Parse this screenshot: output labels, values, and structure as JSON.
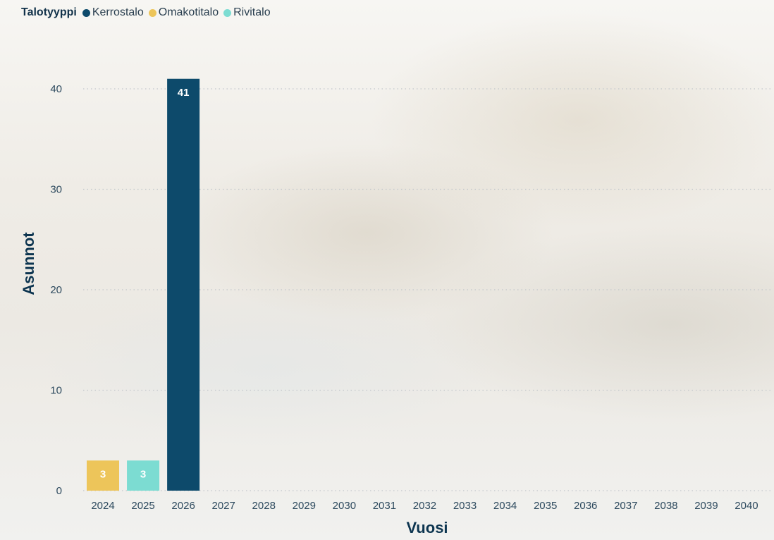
{
  "legend": {
    "title": "Talotyyppi",
    "items": [
      {
        "label": "Kerrostalo",
        "color": "#0d4a6b"
      },
      {
        "label": "Omakotitalo",
        "color": "#edc55a"
      },
      {
        "label": "Rivitalo",
        "color": "#7cdcd2"
      }
    ]
  },
  "chart_data": {
    "type": "bar",
    "xlabel": "Vuosi",
    "ylabel": "Asunnot",
    "ylim": [
      0,
      42
    ],
    "yticks": [
      0,
      10,
      20,
      30,
      40
    ],
    "grid": true,
    "categories": [
      "2024",
      "2025",
      "2026",
      "2027",
      "2028",
      "2029",
      "2030",
      "2031",
      "2032",
      "2033",
      "2034",
      "2035",
      "2036",
      "2037",
      "2038",
      "2039",
      "2040"
    ],
    "series": [
      {
        "name": "Kerrostalo",
        "color": "#0d4a6b",
        "values": [
          0,
          0,
          41,
          0,
          0,
          0,
          0,
          0,
          0,
          0,
          0,
          0,
          0,
          0,
          0,
          0,
          0
        ]
      },
      {
        "name": "Omakotitalo",
        "color": "#edc55a",
        "values": [
          3,
          0,
          0,
          0,
          0,
          0,
          0,
          0,
          0,
          0,
          0,
          0,
          0,
          0,
          0,
          0,
          0
        ]
      },
      {
        "name": "Rivitalo",
        "color": "#7cdcd2",
        "values": [
          0,
          3,
          0,
          0,
          0,
          0,
          0,
          0,
          0,
          0,
          0,
          0,
          0,
          0,
          0,
          0,
          0
        ]
      }
    ]
  }
}
